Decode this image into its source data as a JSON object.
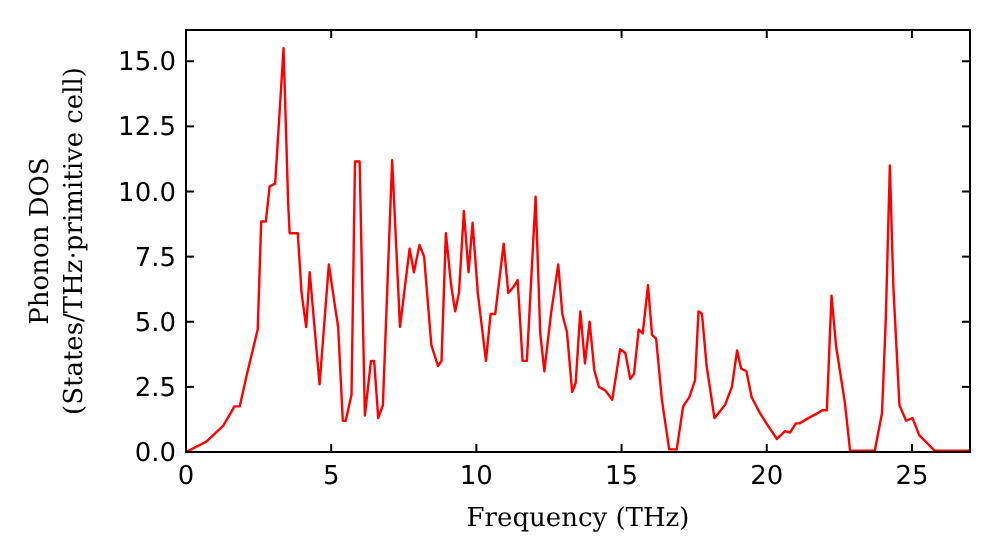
{
  "chart_data": {
    "type": "line",
    "xlabel": "Frequency (THz)",
    "ylabel": "Phonon DOS\n(States/THz·primitive cell)",
    "x": [
      0,
      0.7,
      1.28,
      1.67,
      1.85,
      2.08,
      2.47,
      2.59,
      2.75,
      2.88,
      3.07,
      3.36,
      3.52,
      3.57,
      3.85,
      3.98,
      4.14,
      4.26,
      4.6,
      4.92,
      5.13,
      5.24,
      5.4,
      5.5,
      5.7,
      5.82,
      5.98,
      6.16,
      6.37,
      6.48,
      6.62,
      6.78,
      7.1,
      7.37,
      7.7,
      7.85,
      8.04,
      8.2,
      8.45,
      8.68,
      8.8,
      8.95,
      9.13,
      9.27,
      9.4,
      9.57,
      9.73,
      9.87,
      10.05,
      10.33,
      10.49,
      10.65,
      10.94,
      11.1,
      11.29,
      11.42,
      11.59,
      11.74,
      12.04,
      12.2,
      12.34,
      12.57,
      12.82,
      12.96,
      13.12,
      13.3,
      13.42,
      13.58,
      13.74,
      13.9,
      14.06,
      14.22,
      14.45,
      14.68,
      14.95,
      15.13,
      15.3,
      15.43,
      15.59,
      15.73,
      15.91,
      16.05,
      16.19,
      16.39,
      16.64,
      16.9,
      17.12,
      17.33,
      17.53,
      17.65,
      17.77,
      17.93,
      18.2,
      18.56,
      18.8,
      18.98,
      19.12,
      19.3,
      19.48,
      19.76,
      19.99,
      20.35,
      20.63,
      20.81,
      21.0,
      21.13,
      21.43,
      21.77,
      21.91,
      22.07,
      22.23,
      22.39,
      22.69,
      22.87,
      23.72,
      23.97,
      24.1,
      24.24,
      24.36,
      24.57,
      24.8,
      25.02,
      25.25,
      25.78,
      27
    ],
    "series": [
      {
        "color": "#ff0000",
        "values": [
          0,
          0.4,
          1.0,
          1.75,
          1.75,
          2.9,
          4.7,
          8.85,
          8.85,
          10.2,
          10.3,
          15.5,
          9.5,
          8.4,
          8.4,
          6.1,
          4.8,
          6.9,
          2.6,
          7.2,
          5.6,
          4.8,
          1.2,
          1.2,
          2.2,
          11.15,
          11.15,
          1.4,
          3.5,
          3.5,
          1.3,
          1.8,
          11.2,
          4.8,
          7.8,
          6.9,
          7.95,
          7.5,
          4.1,
          3.3,
          3.5,
          8.4,
          6.4,
          5.4,
          6.1,
          9.25,
          6.9,
          8.8,
          6.1,
          3.5,
          5.3,
          5.3,
          8.0,
          6.1,
          6.35,
          6.6,
          3.5,
          3.5,
          9.8,
          4.55,
          3.1,
          5.3,
          7.2,
          5.3,
          4.6,
          2.3,
          2.65,
          5.4,
          3.4,
          5.0,
          3.15,
          2.5,
          2.35,
          2.0,
          3.95,
          3.8,
          2.8,
          3.0,
          4.7,
          4.55,
          6.4,
          4.5,
          4.35,
          2.0,
          0.1,
          0.1,
          1.75,
          2.1,
          2.75,
          5.4,
          5.3,
          3.3,
          1.3,
          1.8,
          2.5,
          3.9,
          3.2,
          3.1,
          2.1,
          1.5,
          1.1,
          0.5,
          0.8,
          0.75,
          1.1,
          1.1,
          1.3,
          1.5,
          1.6,
          1.6,
          6.0,
          4.05,
          1.9,
          0.05,
          0.05,
          1.5,
          5.1,
          11.0,
          6.35,
          1.8,
          1.2,
          1.3,
          0.65,
          0.05,
          0.05
        ]
      }
    ],
    "xlim": [
      0,
      27
    ],
    "ylim": [
      0,
      16.2
    ],
    "xticks": [
      0,
      5,
      10,
      15,
      20,
      25
    ],
    "yticks": [
      {
        "value": 0,
        "label": "0.0"
      },
      {
        "value": 2.5,
        "label": "2.5"
      },
      {
        "value": 5,
        "label": "5.0"
      },
      {
        "value": 7.5,
        "label": "7.5"
      },
      {
        "value": 10,
        "label": "10.0"
      },
      {
        "value": 12.5,
        "label": "12.5"
      },
      {
        "value": 15,
        "label": "15.0"
      }
    ],
    "grid": false
  }
}
